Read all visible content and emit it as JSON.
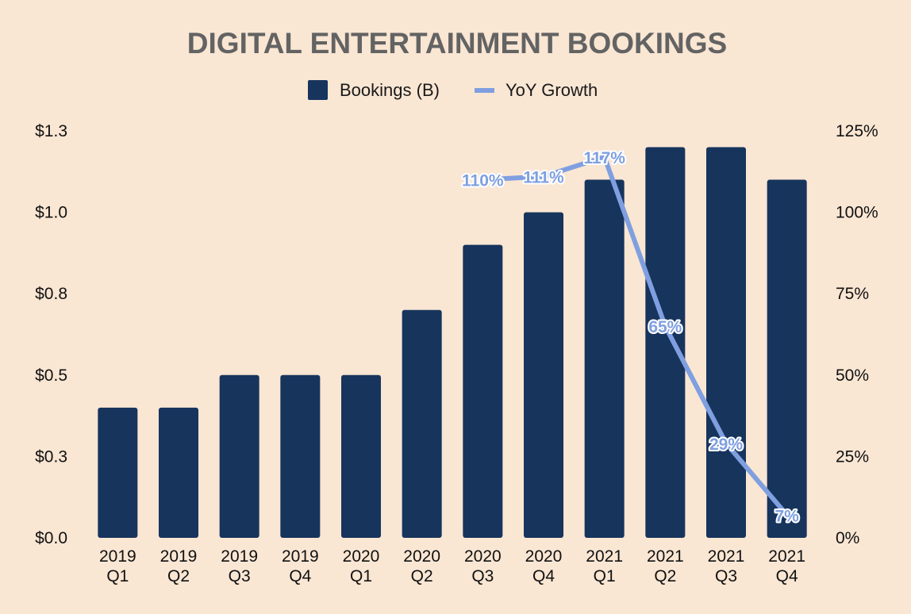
{
  "chart_data": {
    "type": "bar",
    "title": "DIGITAL ENTERTAINMENT BOOKINGS",
    "categories": [
      [
        "2019",
        "Q1"
      ],
      [
        "2019",
        "Q2"
      ],
      [
        "2019",
        "Q3"
      ],
      [
        "2019",
        "Q4"
      ],
      [
        "2020",
        "Q1"
      ],
      [
        "2020",
        "Q2"
      ],
      [
        "2020",
        "Q3"
      ],
      [
        "2020",
        "Q4"
      ],
      [
        "2021",
        "Q1"
      ],
      [
        "2021",
        "Q2"
      ],
      [
        "2021",
        "Q3"
      ],
      [
        "2021",
        "Q4"
      ]
    ],
    "series": [
      {
        "name": "Bookings (B)",
        "type": "bar",
        "axis": "left",
        "color": "#17345d",
        "values": [
          0.4,
          0.4,
          0.5,
          0.5,
          0.5,
          0.7,
          0.9,
          1.0,
          1.1,
          1.2,
          1.2,
          1.1
        ]
      },
      {
        "name": "YoY Growth",
        "type": "line",
        "axis": "right",
        "color": "#7f9fe0",
        "values": [
          null,
          null,
          null,
          null,
          null,
          null,
          110,
          111,
          117,
          65,
          29,
          7
        ],
        "labels": [
          "",
          "",
          "",
          "",
          "",
          "",
          "110%",
          "111%",
          "117%",
          "65%",
          "29%",
          "7%"
        ]
      }
    ],
    "left_axis": {
      "range": [
        0,
        1.25
      ],
      "ticks": [
        0,
        0.25,
        0.5,
        0.75,
        1.0,
        1.25
      ],
      "tick_labels": [
        "$0.0",
        "$0.3",
        "$0.5",
        "$0.8",
        "$1.0",
        "$1.3"
      ]
    },
    "right_axis": {
      "range": [
        0,
        125
      ],
      "ticks": [
        0,
        25,
        50,
        75,
        100,
        125
      ],
      "tick_labels": [
        "0%",
        "25%",
        "50%",
        "75%",
        "100%",
        "125%"
      ]
    },
    "grid": false,
    "legend": "top-center"
  }
}
